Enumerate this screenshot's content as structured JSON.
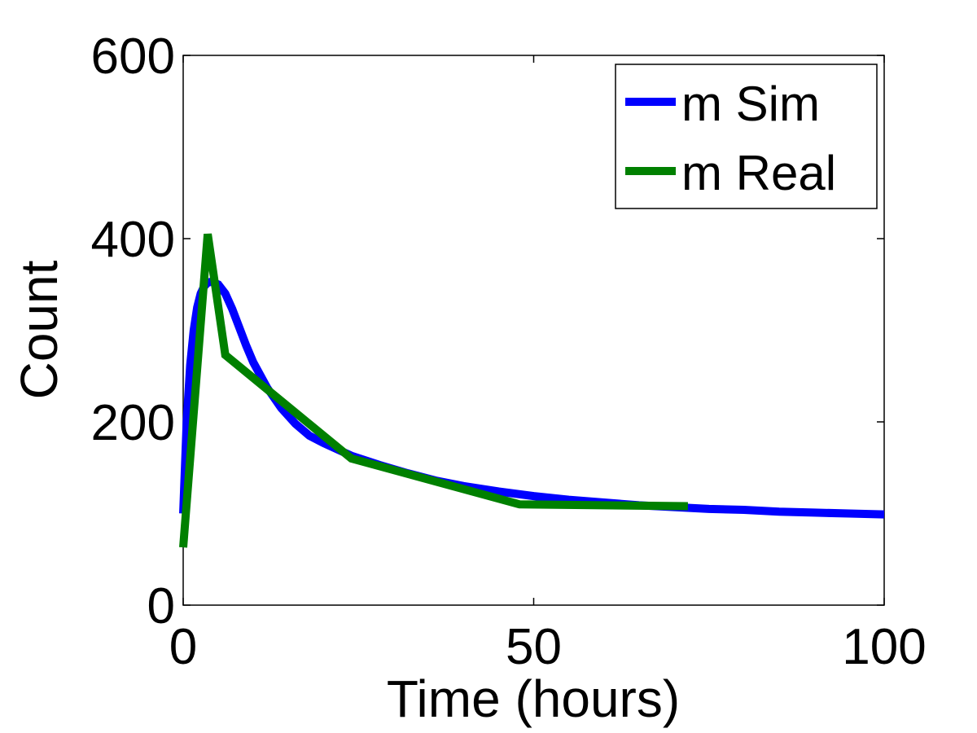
{
  "chart_data": {
    "type": "line",
    "title": "",
    "xlabel": "Time (hours)",
    "ylabel": "Count",
    "xlim": [
      0,
      100
    ],
    "ylim": [
      0,
      600
    ],
    "xticks": [
      0,
      50,
      100
    ],
    "yticks": [
      0,
      200,
      400,
      600
    ],
    "grid": false,
    "legend_position": "top-right",
    "series": [
      {
        "name": "m Sim",
        "color": "#0000ff",
        "x": [
          0,
          0.5,
          1,
          1.5,
          2,
          2.5,
          3,
          3.5,
          4,
          5,
          6,
          7,
          8,
          9,
          10,
          12,
          14,
          16,
          18,
          20,
          24,
          28,
          32,
          36,
          40,
          45,
          50,
          55,
          60,
          65,
          70,
          75,
          80,
          85,
          90,
          95,
          100
        ],
        "y": [
          100,
          200,
          262,
          300,
          325,
          340,
          348,
          352,
          353,
          350,
          340,
          323,
          303,
          283,
          265,
          237,
          215,
          198,
          185,
          177,
          163,
          153,
          144,
          136,
          130,
          124,
          119,
          115,
          112,
          109,
          107,
          105,
          104,
          102,
          101,
          100,
          99
        ]
      },
      {
        "name": "m Real",
        "color": "#008000",
        "x": [
          0,
          3.5,
          6,
          24,
          48,
          72
        ],
        "y": [
          63,
          405,
          273,
          160,
          110,
          108
        ]
      }
    ]
  }
}
